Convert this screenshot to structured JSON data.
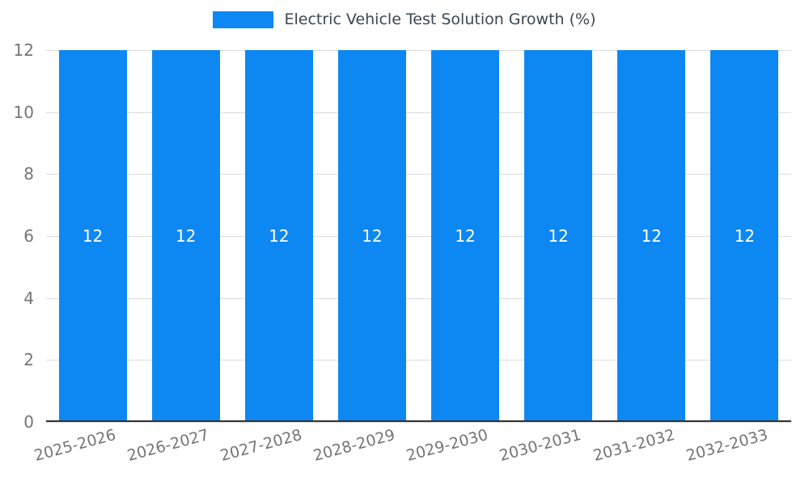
{
  "chart_data": {
    "type": "bar",
    "title": "Electric Vehicle Test Solution Growth (%)",
    "categories": [
      "2025-2026",
      "2026-2027",
      "2027-2028",
      "2028-2029",
      "2029-2030",
      "2030-2031",
      "2031-2032",
      "2032-2033"
    ],
    "values": [
      12,
      12,
      12,
      12,
      12,
      12,
      12,
      12
    ],
    "bar_labels": [
      "12",
      "12",
      "12",
      "12",
      "12",
      "12",
      "12",
      "12"
    ],
    "xlabel": "",
    "ylabel": "",
    "ylim": [
      0,
      12
    ],
    "yticks": [
      0,
      2,
      4,
      6,
      8,
      10,
      12
    ],
    "grid": true,
    "legend_position": "top",
    "series_name": "Electric Vehicle Test Solution Growth (%)"
  },
  "colors": {
    "bar": "#0d88f2",
    "grid": "#dcdcdc",
    "axis": "#333333",
    "tick_text": "#757575",
    "title_text": "#3b4752",
    "bar_label_text": "#ffffff"
  }
}
